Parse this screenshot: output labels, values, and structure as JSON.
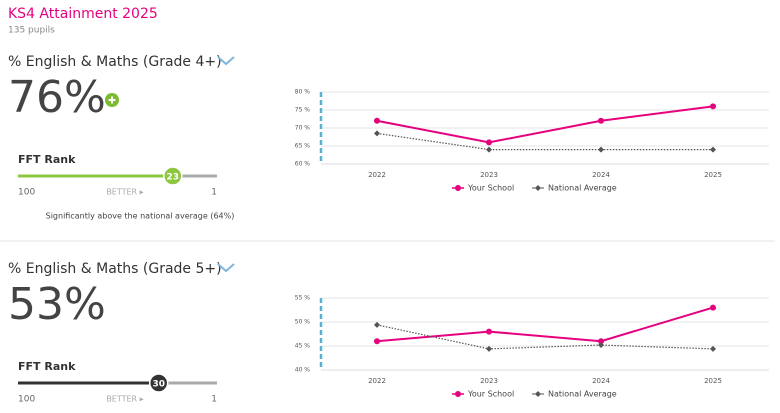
{
  "header": {
    "title": "KS4 Attainment 2025",
    "subtitle": "135 pupils"
  },
  "panels": [
    {
      "title": "% English & Maths (Grade 4+)",
      "value": "76%",
      "rank_label": "FFT Rank",
      "rank": 23,
      "rank_range": [
        100,
        1
      ],
      "better_label": "BETTER ▸",
      "rank_color": "#8dc63f",
      "note": "Significantly above the national average (64%)"
    },
    {
      "title": "% English & Maths (Grade 5+)",
      "value": "53%",
      "rank_label": "FFT Rank",
      "rank": 30,
      "rank_range": [
        100,
        1
      ],
      "better_label": "BETTER ▸",
      "rank_color": "#333333"
    }
  ],
  "chart_data": [
    {
      "type": "line",
      "categories": [
        "2022",
        "2023",
        "2024",
        "2025"
      ],
      "ylim": [
        60,
        80
      ],
      "yticks": [
        {
          "value": 60,
          "label": "60 %"
        },
        {
          "value": 65,
          "label": "65 %"
        },
        {
          "value": 70,
          "label": "70 %"
        },
        {
          "value": 75,
          "label": "75 %"
        },
        {
          "value": 80,
          "label": "80 %"
        }
      ],
      "grid": true,
      "series": [
        {
          "name": "Your School",
          "color": "#e6007e",
          "line_style": "solid",
          "marker": "circle",
          "values": [
            72,
            66,
            72,
            76
          ]
        },
        {
          "name": "National Average",
          "color": "#555555",
          "line_style": "dotted",
          "marker": "diamond",
          "values": [
            68.5,
            64,
            64,
            64
          ]
        }
      ]
    },
    {
      "type": "line",
      "categories": [
        "2022",
        "2023",
        "2024",
        "2025"
      ],
      "ylim": [
        40,
        55
      ],
      "yticks": [
        {
          "value": 40,
          "label": "40 %"
        },
        {
          "value": 45,
          "label": "45 %"
        },
        {
          "value": 50,
          "label": "50 %"
        },
        {
          "value": 55,
          "label": "55 %"
        }
      ],
      "grid": true,
      "series": [
        {
          "name": "Your School",
          "color": "#e6007e",
          "line_style": "solid",
          "marker": "circle",
          "values": [
            46,
            48,
            46,
            53
          ]
        },
        {
          "name": "National Average",
          "color": "#555555",
          "line_style": "dotted",
          "marker": "diamond",
          "values": [
            49.4,
            44.4,
            45.2,
            44.4
          ]
        }
      ]
    }
  ]
}
